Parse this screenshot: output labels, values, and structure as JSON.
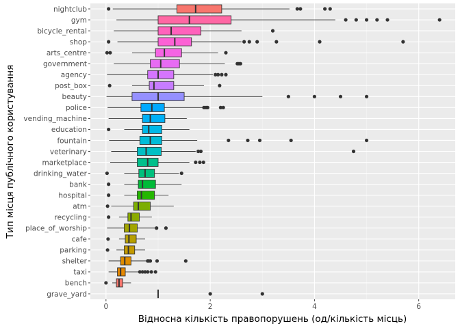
{
  "chart_data": {
    "type": "boxplot",
    "xlabel": "Відносна кількість правопорушень (од/кількість місць)",
    "ylabel": "Тип місця публічного користування",
    "xlim": [
      -0.3,
      6.7
    ],
    "xticks": [
      0,
      2,
      4,
      6
    ],
    "grid": true,
    "legend": "none",
    "categories": [
      {
        "name": "nightclub",
        "whisker_low": 0.13,
        "q1": 1.36,
        "median": 1.72,
        "q3": 2.22,
        "whisker_high": 3.52,
        "outliers": [
          0.05,
          3.67,
          3.73,
          4.2,
          4.3
        ],
        "color": "#F8766D"
      },
      {
        "name": "gym",
        "whisker_low": 0.2,
        "q1": 1.0,
        "median": 1.6,
        "q3": 2.4,
        "whisker_high": 4.4,
        "outliers": [
          4.6,
          4.8,
          5.0,
          5.2,
          5.4,
          6.4
        ],
        "color": "#FF67A4"
      },
      {
        "name": "bicycle_rental",
        "whisker_low": 0.15,
        "q1": 1.0,
        "median": 1.25,
        "q3": 1.82,
        "whisker_high": 2.6,
        "outliers": [
          3.2
        ],
        "color": "#FF62BC"
      },
      {
        "name": "shop",
        "whisker_low": 0.22,
        "q1": 1.0,
        "median": 1.32,
        "q3": 1.64,
        "whisker_high": 2.6,
        "outliers": [
          0.05,
          2.65,
          2.75,
          2.9,
          3.27,
          4.1,
          5.7
        ],
        "color": "#FC61D5"
      },
      {
        "name": "arts_centre",
        "whisker_low": 0.5,
        "q1": 0.95,
        "median": 1.12,
        "q3": 1.45,
        "whisker_high": 2.15,
        "outliers": [
          0.02,
          0.08,
          2.3
        ],
        "color": "#F564E3"
      },
      {
        "name": "government",
        "whisker_low": 0.15,
        "q1": 0.85,
        "median": 1.05,
        "q3": 1.41,
        "whisker_high": 2.28,
        "outliers": [
          2.52,
          2.55,
          2.58
        ],
        "color": "#E76BF3"
      },
      {
        "name": "agency",
        "whisker_low": 0.02,
        "q1": 0.8,
        "median": 1.0,
        "q3": 1.3,
        "whisker_high": 2.05,
        "outliers": [
          2.1,
          2.15,
          2.22,
          2.3
        ],
        "color": "#D575FE"
      },
      {
        "name": "post_box",
        "whisker_low": 0.5,
        "q1": 0.83,
        "median": 0.92,
        "q3": 1.3,
        "whisker_high": 1.88,
        "outliers": [
          0.07,
          2.18
        ],
        "color": "#C77CFF"
      },
      {
        "name": "beauty",
        "whisker_low": 0.01,
        "q1": 0.5,
        "median": 1.0,
        "q3": 1.5,
        "whisker_high": 3.0,
        "outliers": [
          3.5,
          4.0,
          4.5,
          5.0
        ],
        "color": "#9590FF"
      },
      {
        "name": "police",
        "whisker_low": 0.03,
        "q1": 0.67,
        "median": 0.88,
        "q3": 1.12,
        "whisker_high": 1.85,
        "outliers": [
          1.88,
          1.92,
          1.95,
          2.2,
          2.25
        ],
        "color": "#00A9FF"
      },
      {
        "name": "vending_machine",
        "whisker_low": 0.05,
        "q1": 0.7,
        "median": 0.85,
        "q3": 1.13,
        "whisker_high": 1.55,
        "outliers": [],
        "color": "#00B0F6"
      },
      {
        "name": "education",
        "whisker_low": 0.35,
        "q1": 0.7,
        "median": 0.82,
        "q3": 1.07,
        "whisker_high": 1.6,
        "outliers": [
          0.05
        ],
        "color": "#00B8E7"
      },
      {
        "name": "fountain",
        "whisker_low": 0.06,
        "q1": 0.65,
        "median": 0.85,
        "q3": 1.07,
        "whisker_high": 1.75,
        "outliers": [
          2.35,
          2.72,
          2.95,
          3.55,
          5.0
        ],
        "color": "#00BCD8"
      },
      {
        "name": "veterinary",
        "whisker_low": 0.1,
        "q1": 0.6,
        "median": 0.77,
        "q3": 1.06,
        "whisker_high": 1.72,
        "outliers": [
          1.77,
          1.82,
          4.75
        ],
        "color": "#00BFC4"
      },
      {
        "name": "marketplace",
        "whisker_low": 0.08,
        "q1": 0.6,
        "median": 0.8,
        "q3": 1.0,
        "whisker_high": 1.6,
        "outliers": [
          1.72,
          1.8,
          1.87
        ],
        "color": "#00C08B"
      },
      {
        "name": "drinking_water",
        "whisker_low": 0.35,
        "q1": 0.63,
        "median": 0.75,
        "q3": 0.93,
        "whisker_high": 1.4,
        "outliers": [
          0.02,
          1.45
        ],
        "color": "#00BF7D"
      },
      {
        "name": "bank",
        "whisker_low": 0.35,
        "q1": 0.62,
        "median": 0.7,
        "q3": 0.95,
        "whisker_high": 1.45,
        "outliers": [
          0.05
        ],
        "color": "#00BA38"
      },
      {
        "name": "hospital",
        "whisker_low": 0.35,
        "q1": 0.6,
        "median": 0.68,
        "q3": 0.93,
        "whisker_high": 1.2,
        "outliers": [
          0.05
        ],
        "color": "#24B700"
      },
      {
        "name": "atm",
        "whisker_low": 0.1,
        "q1": 0.53,
        "median": 0.62,
        "q3": 0.85,
        "whisker_high": 1.3,
        "outliers": [
          0.03
        ],
        "color": "#7CAE00"
      },
      {
        "name": "recycling",
        "whisker_low": 0.25,
        "q1": 0.42,
        "median": 0.48,
        "q3": 0.64,
        "whisker_high": 0.88,
        "outliers": [
          0.05
        ],
        "color": "#8BAB00"
      },
      {
        "name": "place_of_worship",
        "whisker_low": 0.02,
        "q1": 0.35,
        "median": 0.45,
        "q3": 0.6,
        "whisker_high": 0.95,
        "outliers": [
          0.97,
          1.15
        ],
        "color": "#A3A500"
      },
      {
        "name": "cafe",
        "whisker_low": 0.25,
        "q1": 0.37,
        "median": 0.44,
        "q3": 0.58,
        "whisker_high": 0.75,
        "outliers": [
          0.04
        ],
        "color": "#B79F00"
      },
      {
        "name": "parking",
        "whisker_low": 0.2,
        "q1": 0.35,
        "median": 0.43,
        "q3": 0.55,
        "whisker_high": 0.75,
        "outliers": [
          0.03
        ],
        "color": "#C49A00"
      },
      {
        "name": "shelter",
        "whisker_low": 0.05,
        "q1": 0.28,
        "median": 0.36,
        "q3": 0.48,
        "whisker_high": 0.77,
        "outliers": [
          0.8,
          0.82,
          0.85,
          0.98,
          1.53
        ],
        "color": "#DE8C00"
      },
      {
        "name": "taxi",
        "whisker_low": 0.05,
        "q1": 0.22,
        "median": 0.28,
        "q3": 0.37,
        "whisker_high": 0.62,
        "outliers": [
          0.65,
          0.7,
          0.75,
          0.8,
          0.87,
          0.95
        ],
        "color": "#E58700"
      },
      {
        "name": "bench",
        "whisker_low": 0.12,
        "q1": 0.2,
        "median": 0.25,
        "q3": 0.32,
        "whisker_high": 0.48,
        "outliers": [
          0.0
        ],
        "color": "#F8766D"
      },
      {
        "name": "grave_yard",
        "whisker_low": 1.0,
        "q1": 1.0,
        "median": 1.0,
        "q3": 1.0,
        "whisker_high": 1.0,
        "outliers": [
          2.0,
          3.0
        ],
        "color": "#F8766D"
      }
    ]
  }
}
